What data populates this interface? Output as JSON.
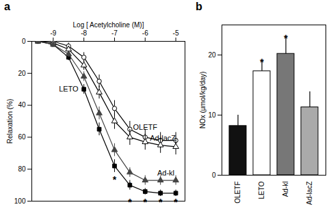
{
  "chart_data": [
    {
      "type": "line",
      "title": "a",
      "x_label": "Log [ Acetylcholine (M)]",
      "y_label": "Relaxation (%)",
      "x": [
        -9.5,
        -9,
        -8.5,
        -8,
        -7.5,
        -7,
        -6.5,
        -6,
        -5.5,
        -5
      ],
      "xlim": [
        -9.7,
        -4.7
      ],
      "xticks": [
        -9,
        -8,
        -7,
        -6,
        -5
      ],
      "ylim": [
        100,
        0
      ],
      "yticks": [
        0,
        20,
        40,
        60,
        80,
        100
      ],
      "series": [
        {
          "name": "OLETF",
          "color": "#000000",
          "marker": "circle_open",
          "values": [
            0,
            0,
            3,
            10,
            25,
            42,
            55,
            60,
            62,
            62
          ],
          "errors": [
            1,
            1,
            2,
            3,
            4,
            5,
            5,
            5,
            5,
            5
          ]
        },
        {
          "name": "LETO",
          "color": "#000000",
          "marker": "square",
          "values": [
            0,
            2,
            10,
            30,
            55,
            78,
            90,
            94,
            95,
            95
          ],
          "errors": [
            1,
            1,
            2,
            3,
            4,
            4,
            3,
            2,
            2,
            2
          ]
        },
        {
          "name": "Ad-lacZ",
          "color": "#000000",
          "marker": "triangle_open",
          "values": [
            0,
            1,
            5,
            15,
            32,
            50,
            60,
            63,
            65,
            66
          ],
          "errors": [
            1,
            1,
            2,
            3,
            4,
            5,
            5,
            5,
            5,
            5
          ]
        },
        {
          "name": "Ad-kl",
          "color": "#444444",
          "marker": "triangle",
          "values": [
            0,
            2,
            8,
            22,
            45,
            68,
            82,
            87,
            87,
            87
          ],
          "errors": [
            1,
            1,
            2,
            3,
            4,
            4,
            3,
            3,
            3,
            3
          ]
        }
      ],
      "annotations": [
        {
          "x": -7,
          "y": 85,
          "text": "*"
        },
        {
          "x": -6.5,
          "y": 89,
          "text": "*"
        },
        {
          "x": -6.5,
          "y": 99,
          "text": "*"
        },
        {
          "x": -6,
          "y": 99,
          "text": "*"
        },
        {
          "x": -5.5,
          "y": 99,
          "text": "*"
        },
        {
          "x": -5,
          "y": 99,
          "text": "*"
        }
      ]
    },
    {
      "type": "bar",
      "title": "b",
      "y_label": "NOx (μmol/kg/day)",
      "categories": [
        "OLETF",
        "LETO",
        "Ad-kl",
        "Ad-lacZ"
      ],
      "values": [
        8.2,
        17.3,
        20.2,
        11.3
      ],
      "errors": [
        1.8,
        1.5,
        2.6,
        2.6
      ],
      "colors": [
        "#111111",
        "#ffffff",
        "#777777",
        "#aaaaaa"
      ],
      "ylim": [
        0,
        25
      ],
      "yticks": [
        0,
        10,
        20
      ],
      "annotations": [
        {
          "x": "LETO",
          "y": 19.2,
          "text": "*"
        },
        {
          "x": "Ad-kl",
          "y": 23.2,
          "text": "*"
        }
      ]
    }
  ]
}
